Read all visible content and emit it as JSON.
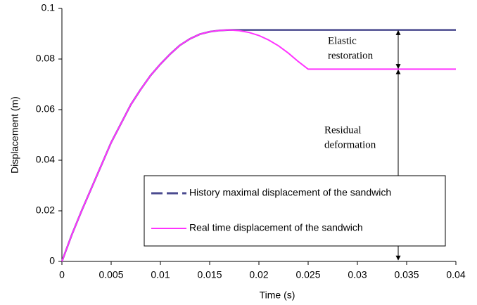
{
  "chart_data": {
    "type": "line",
    "x_label": "Time (s)",
    "y_label": "Displacement (m)",
    "x": [
      0,
      0.001,
      0.002,
      0.003,
      0.004,
      0.005,
      0.006,
      0.007,
      0.008,
      0.009,
      0.01,
      0.011,
      0.012,
      0.013,
      0.014,
      0.015,
      0.016,
      0.017,
      0.018,
      0.019,
      0.02,
      0.021,
      0.022,
      0.023,
      0.024,
      0.025,
      0.04
    ],
    "series": [
      {
        "name": "History maximal displacement of the sandwich",
        "color": "#4b4b8f",
        "dashed": true,
        "values": [
          0,
          0.0105,
          0.02,
          0.029,
          0.038,
          0.047,
          0.0545,
          0.062,
          0.068,
          0.0735,
          0.078,
          0.082,
          0.0855,
          0.088,
          0.0898,
          0.0908,
          0.0913,
          0.0915,
          0.0915,
          0.0915,
          0.0915,
          0.0915,
          0.0915,
          0.0915,
          0.0915,
          0.0915,
          0.0915
        ]
      },
      {
        "name": "Real time displacement of the sandwich",
        "color": "#ff33ff",
        "dashed": false,
        "values": [
          0,
          0.0105,
          0.02,
          0.029,
          0.038,
          0.047,
          0.0545,
          0.062,
          0.068,
          0.0735,
          0.078,
          0.082,
          0.0855,
          0.088,
          0.0898,
          0.0908,
          0.0913,
          0.0915,
          0.0912,
          0.0905,
          0.0893,
          0.0875,
          0.0852,
          0.0823,
          0.079,
          0.076,
          0.076
        ]
      }
    ],
    "xlim": [
      0,
      0.04
    ],
    "xticks": [
      0,
      0.005,
      0.01,
      0.015,
      0.02,
      0.025,
      0.03,
      0.035,
      0.04
    ],
    "ylim": [
      0,
      0.1
    ],
    "yticks": [
      0,
      0.02,
      0.04,
      0.06,
      0.08,
      0.1
    ],
    "annotations": [
      {
        "lines": [
          "Elastic",
          "restoration"
        ]
      },
      {
        "lines": [
          "Residual",
          "deformation"
        ]
      }
    ]
  }
}
